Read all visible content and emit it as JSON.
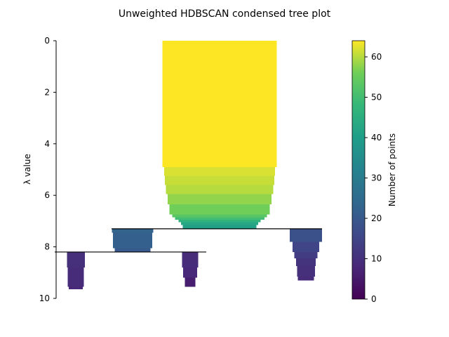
{
  "chart_data": {
    "type": "condensed-tree",
    "title": "Unweighted HDBSCAN condensed tree plot",
    "ylabel": "λ value",
    "ylim": [
      0,
      10
    ],
    "y_inverted": true,
    "y_ticks": [
      "0",
      "2",
      "4",
      "6",
      "8",
      "10"
    ],
    "colorbar": {
      "label": "Number of points",
      "range": [
        0,
        64
      ],
      "ticks": [
        "0",
        "10",
        "20",
        "30",
        "40",
        "50",
        "60"
      ],
      "colormap": "viridis"
    },
    "root_cluster": {
      "steps": [
        {
          "lambda_start": 0.0,
          "lambda_end": 4.9,
          "points": 64
        },
        {
          "lambda_start": 4.9,
          "lambda_end": 5.25,
          "points": 62
        },
        {
          "lambda_start": 5.25,
          "lambda_end": 5.6,
          "points": 61
        },
        {
          "lambda_start": 5.6,
          "lambda_end": 5.95,
          "points": 60
        },
        {
          "lambda_start": 5.95,
          "lambda_end": 6.35,
          "points": 58
        },
        {
          "lambda_start": 6.35,
          "lambda_end": 6.75,
          "points": 56
        },
        {
          "lambda_start": 6.75,
          "lambda_end": 6.85,
          "points": 53
        },
        {
          "lambda_start": 6.85,
          "lambda_end": 6.95,
          "points": 50
        },
        {
          "lambda_start": 6.95,
          "lambda_end": 7.05,
          "points": 46
        },
        {
          "lambda_start": 7.05,
          "lambda_end": 7.15,
          "points": 43
        },
        {
          "lambda_start": 7.15,
          "lambda_end": 7.3,
          "points": 41
        }
      ]
    },
    "splits": [
      {
        "lambda": 7.3,
        "parent": "root",
        "children": [
          "left",
          "right"
        ]
      },
      {
        "lambda": 8.2,
        "parent": "left",
        "children": [
          "left-left",
          "left-right"
        ]
      }
    ],
    "clusters": [
      {
        "id": "left",
        "steps": [
          {
            "lambda_start": 7.3,
            "lambda_end": 7.45,
            "points": 23
          },
          {
            "lambda_start": 7.45,
            "lambda_end": 8.05,
            "points": 22
          },
          {
            "lambda_start": 8.05,
            "lambda_end": 8.2,
            "points": 20
          }
        ]
      },
      {
        "id": "right",
        "steps": [
          {
            "lambda_start": 7.3,
            "lambda_end": 7.8,
            "points": 18
          },
          {
            "lambda_start": 7.8,
            "lambda_end": 8.2,
            "points": 15
          },
          {
            "lambda_start": 8.2,
            "lambda_end": 8.45,
            "points": 13
          },
          {
            "lambda_start": 8.45,
            "lambda_end": 8.75,
            "points": 11
          },
          {
            "lambda_start": 8.75,
            "lambda_end": 9.15,
            "points": 10
          },
          {
            "lambda_start": 9.15,
            "lambda_end": 9.3,
            "points": 9
          }
        ]
      },
      {
        "id": "left-left",
        "steps": [
          {
            "lambda_start": 8.2,
            "lambda_end": 8.8,
            "points": 10
          },
          {
            "lambda_start": 8.8,
            "lambda_end": 9.55,
            "points": 9
          },
          {
            "lambda_start": 9.55,
            "lambda_end": 9.65,
            "points": 8
          }
        ]
      },
      {
        "id": "left-right",
        "steps": [
          {
            "lambda_start": 8.2,
            "lambda_end": 8.8,
            "points": 9
          },
          {
            "lambda_start": 8.8,
            "lambda_end": 9.2,
            "points": 8
          },
          {
            "lambda_start": 9.2,
            "lambda_end": 9.55,
            "points": 6
          }
        ]
      }
    ]
  }
}
